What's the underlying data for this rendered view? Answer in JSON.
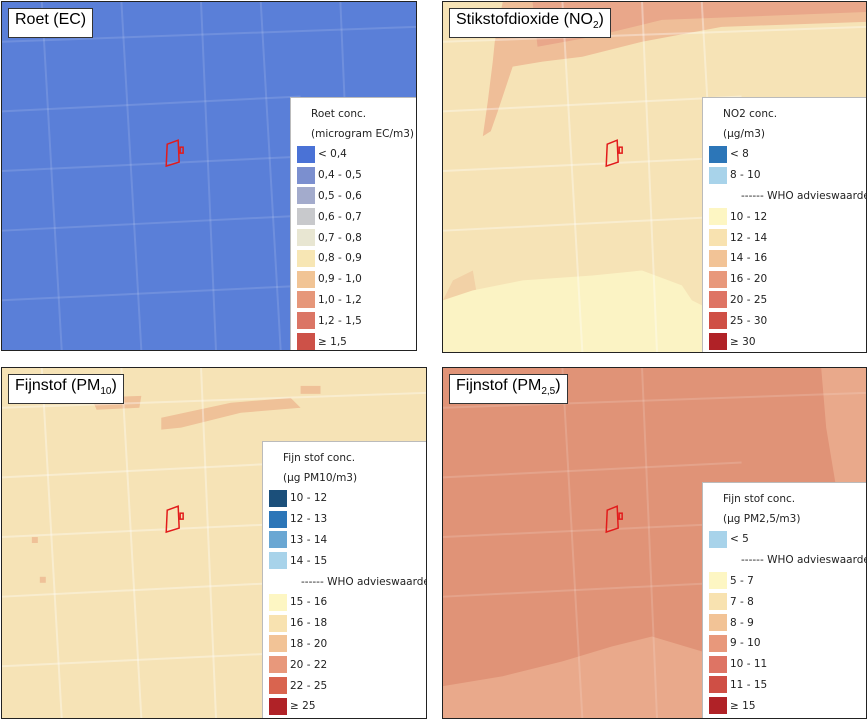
{
  "panels": [
    {
      "id": "roet",
      "title": "Roet (EC)",
      "title_main": "Roet (EC)",
      "title_sub": "",
      "title_after": "",
      "background_color": "#5a7fd8",
      "legend": {
        "heading_1": "Roet conc.",
        "heading_2": "(microgram EC/m3)",
        "items": [
          {
            "label": "< 0,4",
            "color": "#4a72d6"
          },
          {
            "label": "0,4 - 0,5",
            "color": "#7b8fcf"
          },
          {
            "label": "0,5 - 0,6",
            "color": "#a3abcc"
          },
          {
            "label": "0,6 - 0,7",
            "color": "#c8c9cc"
          },
          {
            "label": "0,7 - 0,8",
            "color": "#e8e6d2"
          },
          {
            "label": "0,8 - 0,9",
            "color": "#f7e6b4"
          },
          {
            "label": "0,9 - 1,0",
            "color": "#f1c495"
          },
          {
            "label": "1,0 - 1,2",
            "color": "#e6977a"
          },
          {
            "label": "1,2 - 1,5",
            "color": "#db7565"
          },
          {
            "label": "≥ 1,5",
            "color": "#cd5148"
          }
        ]
      }
    },
    {
      "id": "no2",
      "title": "Stikstofdioxide (NO2)",
      "title_main": "Stikstofdioxide (NO",
      "title_sub": "2",
      "title_after": ")",
      "background_color": "#f6e3b6",
      "legend": {
        "heading_1": "NO2 conc.",
        "heading_2": "(µg/m3)",
        "items": [
          {
            "label": "< 8",
            "color": "#2c76b8"
          },
          {
            "label": "8 - 10",
            "color": "#a8d3ea"
          },
          {
            "label": "------ WHO advieswaarde",
            "color": ""
          },
          {
            "label": "10 - 12",
            "color": "#fdf6c3"
          },
          {
            "label": "12 - 14",
            "color": "#f8e2b0"
          },
          {
            "label": "14 - 16",
            "color": "#f2c396"
          },
          {
            "label": "16 - 20",
            "color": "#e8987b"
          },
          {
            "label": "20 - 25",
            "color": "#de7464"
          },
          {
            "label": "25 - 30",
            "color": "#cf4f45"
          },
          {
            "label": "≥ 30",
            "color": "#b02227"
          }
        ]
      }
    },
    {
      "id": "pm10",
      "title": "Fijnstof (PM10)",
      "title_main": "Fijnstof (PM",
      "title_sub": "10",
      "title_after": ")",
      "background_color": "#f6e3b6",
      "legend": {
        "heading_1": "Fijn stof conc.",
        "heading_2": "(µg PM10/m3)",
        "items": [
          {
            "label": "10 - 12",
            "color": "#1b4f7a"
          },
          {
            "label": "12 - 13",
            "color": "#2c76b8"
          },
          {
            "label": "13 - 14",
            "color": "#6aa7d3"
          },
          {
            "label": "14 - 15",
            "color": "#a8d3ea"
          },
          {
            "label": "------ WHO advieswaarde",
            "color": ""
          },
          {
            "label": "15 - 16",
            "color": "#fdf6c3"
          },
          {
            "label": "16 - 18",
            "color": "#f8e2b0"
          },
          {
            "label": "18 - 20",
            "color": "#f2c396"
          },
          {
            "label": "20 - 22",
            "color": "#e8987b"
          },
          {
            "label": "22 - 25",
            "color": "#d9644f"
          },
          {
            "label": "≥ 25",
            "color": "#b02227"
          }
        ]
      }
    },
    {
      "id": "pm25",
      "title": "Fijnstof (PM2,5)",
      "title_main": "Fijnstof (PM",
      "title_sub": "2,5",
      "title_after": ")",
      "background_color": "#e09377",
      "legend": {
        "heading_1": "Fijn stof conc.",
        "heading_2": "(µg PM2,5/m3)",
        "items": [
          {
            "label": "< 5",
            "color": "#a8d3ea"
          },
          {
            "label": "------ WHO advieswaarde",
            "color": ""
          },
          {
            "label": "5 - 7",
            "color": "#fdf6c3"
          },
          {
            "label": "7 - 8",
            "color": "#f8e2b0"
          },
          {
            "label": "8 - 9",
            "color": "#f2c396"
          },
          {
            "label": "9 - 10",
            "color": "#e8987b"
          },
          {
            "label": "10 - 11",
            "color": "#de7464"
          },
          {
            "label": "11 - 15",
            "color": "#cf4f45"
          },
          {
            "label": "≥ 15",
            "color": "#b02227"
          }
        ]
      }
    }
  ],
  "site_outline_color": "#e21b1b",
  "street_line_color": "#ffffff"
}
